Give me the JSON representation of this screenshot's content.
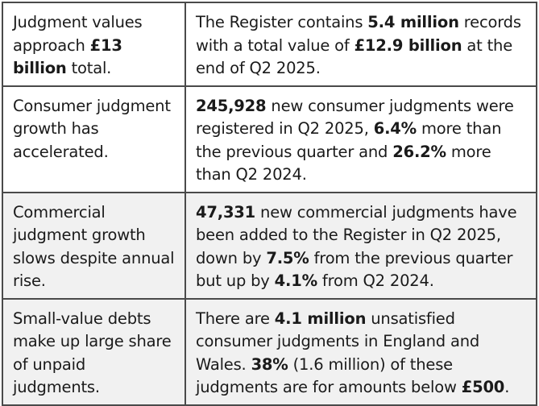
{
  "rows": [
    {
      "heading": [
        {
          "t": "Judgment values approach "
        },
        {
          "t": "£13 billion",
          "b": true
        },
        {
          "t": " total."
        }
      ],
      "body": [
        {
          "t": "The Register contains "
        },
        {
          "t": "5.4 million",
          "b": true
        },
        {
          "t": " records with a total value of "
        },
        {
          "t": "£12.9 billion",
          "b": true
        },
        {
          "t": " at the end of Q2 2025."
        }
      ]
    },
    {
      "heading": [
        {
          "t": "Consumer judgment growth has accelerated."
        }
      ],
      "body": [
        {
          "t": "245,928",
          "b": true
        },
        {
          "t": " new consumer judgments were registered in Q2 2025, "
        },
        {
          "t": "6.4%",
          "b": true
        },
        {
          "t": " more than the previous quarter and "
        },
        {
          "t": "26.2%",
          "b": true
        },
        {
          "t": " more than Q2 2024."
        }
      ]
    },
    {
      "heading": [
        {
          "t": "Commercial judgment growth slows despite annual rise."
        }
      ],
      "body": [
        {
          "t": "47,331",
          "b": true
        },
        {
          "t": " new commercial judgments have been added to the Register in Q2 2025, down by "
        },
        {
          "t": "7.5%",
          "b": true
        },
        {
          "t": " from the previous quarter but up by "
        },
        {
          "t": "4.1%",
          "b": true
        },
        {
          "t": " from Q2 2024."
        }
      ]
    },
    {
      "heading": [
        {
          "t": "Small-value debts make up large share of unpaid judgments."
        }
      ],
      "body": [
        {
          "t": "There are "
        },
        {
          "t": "4.1 million",
          "b": true
        },
        {
          "t": " unsatisfied consumer judgments in England and Wales. "
        },
        {
          "t": "38%",
          "b": true
        },
        {
          "t": " (1.6 million) of these judgments are for amounts below "
        },
        {
          "t": "£500",
          "b": true
        },
        {
          "t": "."
        }
      ]
    }
  ]
}
